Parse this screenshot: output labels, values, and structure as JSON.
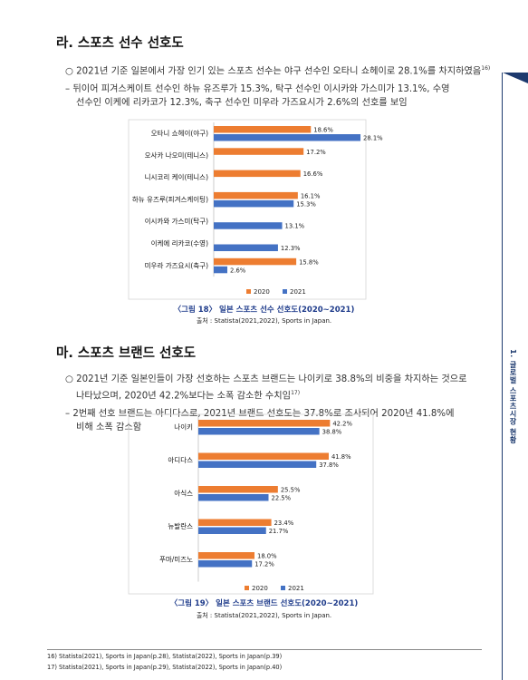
{
  "sidebar": {
    "chapter": "1. 글로벌 스포츠시장 현황"
  },
  "section_ra": {
    "title": "라. 스포츠 선수 선호도",
    "para1": "○ 2021년 기준 일본에서 가장 인기 있는 스포츠 선수는 야구 선수인 오타니 쇼헤이로 28.1%를 차지하였음",
    "para1_note": "16)",
    "para2_line1": "– 뒤이어 피겨스케이트 선수인 하뉴 유즈루가 15.3%, 탁구 선수인 이시카와 가스미가 13.1%, 수영",
    "para2_line2": "선수인 이케에 리카코가 12.3%, 축구 선수인 미우라 가즈요시가 2.6%의 선호를 보임"
  },
  "section_ma": {
    "title": "마. 스포츠 브랜드 선호도",
    "para1_line1": "○ 2021년 기준 일본인들이 가장 선호하는 스포츠 브랜드는 나이키로 38.8%의 비중을 차지하는 것으로",
    "para1_line2": "나타났으며, 2020년 42.2%보다는 소폭 감소한 수치임",
    "para1_note": "17)",
    "para2_line1": "– 2번째 선호 브랜드는 아디다스로, 2021년 브랜드 선호도는 37.8%로 조사되어 2020년 41.8%에",
    "para2_line2": "비해 소폭 감소함"
  },
  "chart_data": [
    {
      "type": "bar",
      "orientation": "horizontal",
      "caption": "〈그림 18〉 일본 스포츠 선수 선호도(2020~2021)",
      "source": "출처 : Statista(2021,2022), Sports in Japan.",
      "categories": [
        "오타니 쇼헤이(야구)",
        "오사카 나오미(테니스)",
        "니시코리 케이(테니스)",
        "하뉴 유즈루(피겨스케이팅)",
        "이시카와 가스미(탁구)",
        "이케에 리카코(수영)",
        "미우라 가즈요시(축구)"
      ],
      "series": [
        {
          "name": "2020",
          "values": [
            18.6,
            17.2,
            16.6,
            16.1,
            null,
            null,
            15.8
          ],
          "labels": [
            "18.6%",
            "17.2%",
            "16.6%",
            "16.1%",
            "",
            "",
            "15.8%"
          ]
        },
        {
          "name": "2021",
          "values": [
            28.1,
            null,
            null,
            15.3,
            13.1,
            12.3,
            2.6
          ],
          "labels": [
            "28.1%",
            "",
            "",
            "15.3%",
            "13.1%",
            "12.3%",
            "2.6%"
          ]
        }
      ],
      "legend_position": "bottom",
      "colors": {
        "2020": "#ED7D31",
        "2021": "#4472C4"
      },
      "xlim": [
        0,
        30
      ]
    },
    {
      "type": "bar",
      "orientation": "horizontal",
      "caption": "〈그림 19〉 일본 스포츠 브랜드 선호도(2020~2021)",
      "source": "출처 : Statista(2021,2022), Sports in Japan.",
      "categories": [
        "나이키",
        "아디다스",
        "아식스",
        "뉴발란스",
        "푸마/미즈노"
      ],
      "series": [
        {
          "name": "2020",
          "values": [
            42.2,
            41.8,
            25.5,
            23.4,
            18.0
          ],
          "labels": [
            "42.2%",
            "41.8%",
            "25.5%",
            "23.4%",
            "18.0%"
          ]
        },
        {
          "name": "2021",
          "values": [
            38.8,
            37.8,
            22.5,
            21.7,
            17.2
          ],
          "labels": [
            "38.8%",
            "37.8%",
            "22.5%",
            "21.7%",
            "17.2%"
          ]
        }
      ],
      "legend_position": "bottom",
      "colors": {
        "2020": "#ED7D31",
        "2021": "#4472C4"
      },
      "xlim": [
        0,
        45
      ]
    }
  ],
  "footnotes": [
    "16) Statista(2021), Sports in Japan(p.28), Statista(2022), Sports in Japan(p.39)",
    "17) Statista(2021), Sports in Japan(p.29), Statista(2022), Sports in Japan(p.40)"
  ]
}
